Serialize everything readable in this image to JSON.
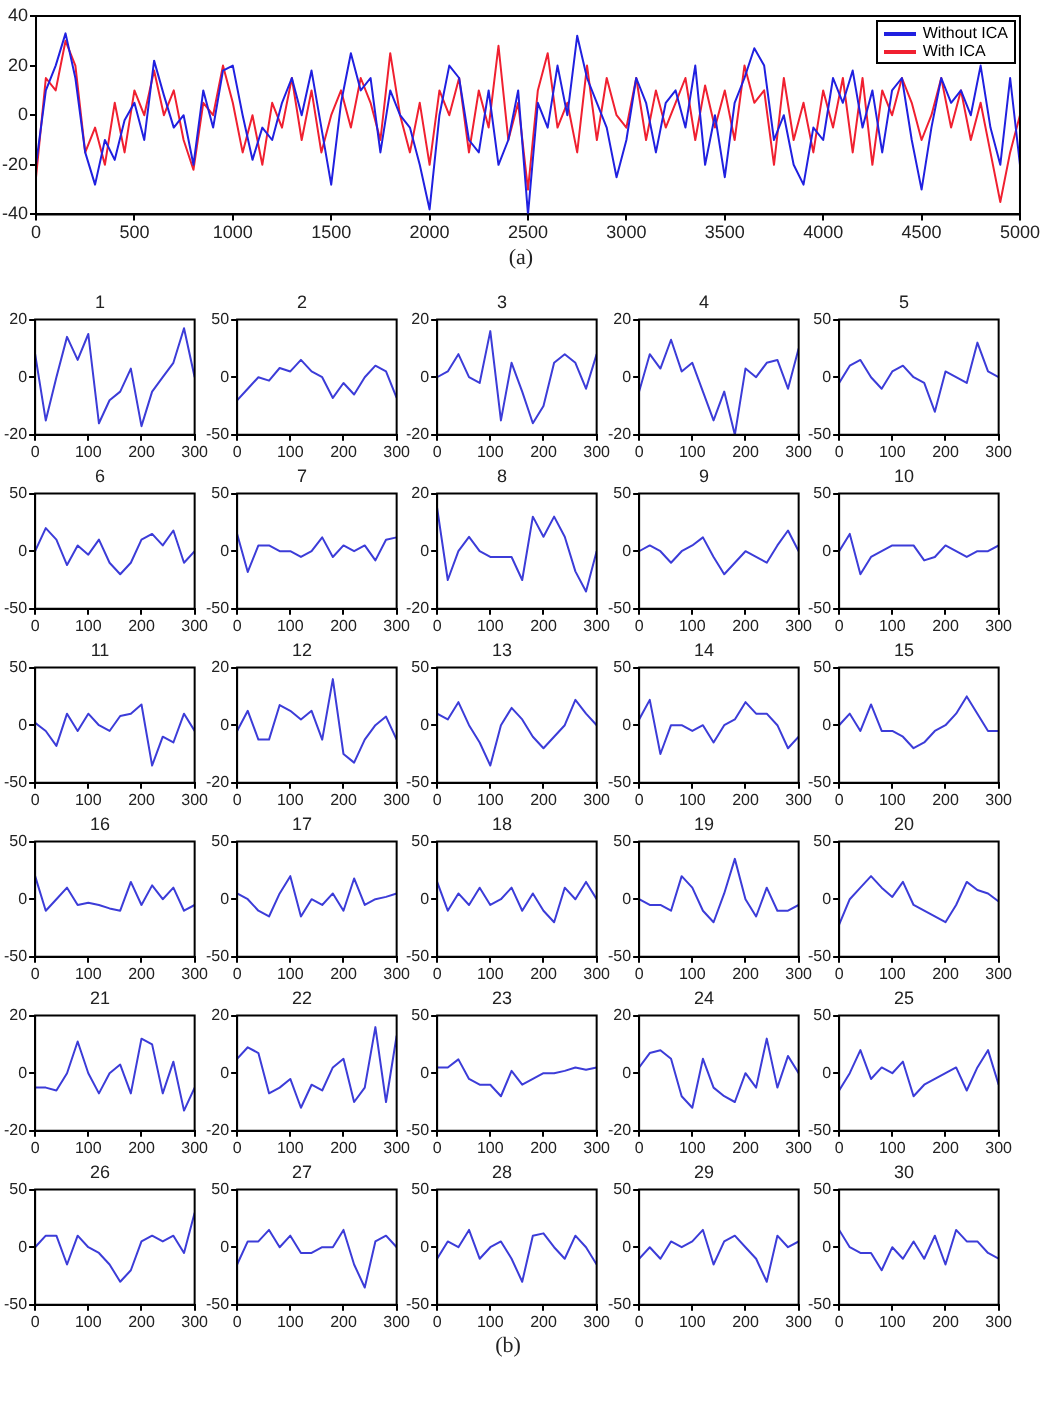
{
  "chart_data": [
    {
      "type": "line",
      "xlim": [
        0,
        5000
      ],
      "ylim": [
        -40,
        40
      ],
      "xticks": [
        0,
        500,
        1000,
        1500,
        2000,
        2500,
        3000,
        3500,
        4000,
        4500,
        5000
      ],
      "yticks": [
        -40,
        -20,
        0,
        20,
        40
      ],
      "grid": false,
      "legend": "top right",
      "marker": "none",
      "annotations": [
        "(a)"
      ],
      "x": [
        0,
        50,
        100,
        150,
        200,
        250,
        300,
        350,
        400,
        450,
        500,
        550,
        600,
        650,
        700,
        750,
        800,
        850,
        900,
        950,
        1000,
        1050,
        1100,
        1150,
        1200,
        1250,
        1300,
        1350,
        1400,
        1450,
        1500,
        1550,
        1600,
        1650,
        1700,
        1750,
        1800,
        1850,
        1900,
        1950,
        2000,
        2050,
        2100,
        2150,
        2200,
        2250,
        2300,
        2350,
        2400,
        2450,
        2500,
        2550,
        2600,
        2650,
        2700,
        2750,
        2800,
        2850,
        2900,
        2950,
        3000,
        3050,
        3100,
        3150,
        3200,
        3250,
        3300,
        3350,
        3400,
        3450,
        3500,
        3550,
        3600,
        3650,
        3700,
        3750,
        3800,
        3850,
        3900,
        3950,
        4000,
        4050,
        4100,
        4150,
        4200,
        4250,
        4300,
        4350,
        4400,
        4450,
        4500,
        4550,
        4600,
        4650,
        4700,
        4750,
        4800,
        4850,
        4900,
        4950,
        5000
      ],
      "series": [
        {
          "name": "Without ICA",
          "color": "#2020e0",
          "values": [
            -20,
            10,
            20,
            33,
            15,
            -15,
            -28,
            -10,
            -18,
            -2,
            5,
            -10,
            22,
            8,
            -5,
            0,
            -20,
            10,
            -5,
            18,
            20,
            0,
            -18,
            -5,
            -10,
            5,
            15,
            0,
            18,
            -5,
            -28,
            5,
            25,
            10,
            15,
            -15,
            10,
            0,
            -5,
            -20,
            -38,
            0,
            20,
            15,
            -10,
            -15,
            10,
            -20,
            -10,
            10,
            -40,
            5,
            -5,
            20,
            0,
            32,
            15,
            5,
            -5,
            -25,
            -10,
            15,
            5,
            -15,
            5,
            10,
            -5,
            20,
            -20,
            0,
            -25,
            5,
            15,
            27,
            20,
            -10,
            0,
            -20,
            -28,
            -5,
            -10,
            15,
            5,
            18,
            -5,
            10,
            -15,
            10,
            15,
            -10,
            -30,
            -5,
            15,
            5,
            10,
            0,
            20,
            -5,
            -20,
            15,
            -20
          ]
        },
        {
          "name": "With ICA",
          "color": "#f02030",
          "values": [
            -25,
            15,
            10,
            30,
            20,
            -15,
            -5,
            -20,
            5,
            -15,
            10,
            0,
            18,
            0,
            10,
            -10,
            -22,
            5,
            0,
            20,
            5,
            -15,
            0,
            -20,
            5,
            -5,
            15,
            -10,
            10,
            -15,
            0,
            10,
            -5,
            15,
            5,
            -10,
            25,
            0,
            -15,
            5,
            -20,
            10,
            0,
            15,
            -15,
            10,
            -5,
            28,
            -10,
            5,
            -30,
            10,
            25,
            -5,
            5,
            -15,
            20,
            -10,
            15,
            0,
            -5,
            15,
            -10,
            10,
            -5,
            5,
            15,
            -10,
            12,
            -5,
            10,
            -10,
            20,
            5,
            10,
            -20,
            15,
            -10,
            5,
            -15,
            10,
            -5,
            15,
            -15,
            15,
            -20,
            10,
            0,
            15,
            5,
            -10,
            0,
            15,
            -5,
            10,
            -10,
            5,
            -15,
            -35,
            -15,
            0
          ]
        }
      ]
    },
    {
      "type": "line",
      "title": "1",
      "xlim": [
        0,
        300
      ],
      "ylim": [
        -20,
        20
      ],
      "xticks": [
        0,
        100,
        200,
        300
      ],
      "yticks": [
        -20,
        0,
        20
      ],
      "grid": false,
      "marker": "none",
      "color": "#3c3cd8",
      "x": [
        0,
        20,
        40,
        60,
        80,
        100,
        120,
        140,
        160,
        180,
        200,
        220,
        240,
        260,
        280,
        300
      ],
      "values": [
        8,
        -15,
        0,
        14,
        6,
        15,
        -16,
        -8,
        -5,
        3,
        -17,
        -5,
        0,
        5,
        17,
        0
      ]
    },
    {
      "type": "line",
      "title": "2",
      "xlim": [
        0,
        300
      ],
      "ylim": [
        -50,
        50
      ],
      "xticks": [
        0,
        100,
        200,
        300
      ],
      "yticks": [
        -50,
        0,
        50
      ],
      "grid": false,
      "marker": "none",
      "color": "#3c3cd8",
      "x": [
        0,
        20,
        40,
        60,
        80,
        100,
        120,
        140,
        160,
        180,
        200,
        220,
        240,
        260,
        280,
        300
      ],
      "values": [
        -20,
        -10,
        0,
        -3,
        8,
        5,
        15,
        5,
        0,
        -18,
        -5,
        -15,
        0,
        10,
        5,
        -18
      ]
    },
    {
      "type": "line",
      "title": "3",
      "xlim": [
        0,
        300
      ],
      "ylim": [
        -20,
        20
      ],
      "xticks": [
        0,
        100,
        200,
        300
      ],
      "yticks": [
        -20,
        0,
        20
      ],
      "grid": false,
      "marker": "none",
      "color": "#3c3cd8",
      "x": [
        0,
        20,
        40,
        60,
        80,
        100,
        120,
        140,
        160,
        180,
        200,
        220,
        240,
        260,
        280,
        300
      ],
      "values": [
        0,
        2,
        8,
        0,
        -2,
        16,
        -15,
        5,
        -5,
        -16,
        -10,
        5,
        8,
        5,
        -4,
        8
      ]
    },
    {
      "type": "line",
      "title": "4",
      "xlim": [
        0,
        300
      ],
      "ylim": [
        -20,
        20
      ],
      "xticks": [
        0,
        100,
        200,
        300
      ],
      "yticks": [
        -20,
        0,
        20
      ],
      "grid": false,
      "marker": "none",
      "color": "#3c3cd8",
      "x": [
        0,
        20,
        40,
        60,
        80,
        100,
        120,
        140,
        160,
        180,
        200,
        220,
        240,
        260,
        280,
        300
      ],
      "values": [
        -5,
        8,
        3,
        13,
        2,
        5,
        -5,
        -15,
        -5,
        -20,
        3,
        0,
        5,
        6,
        -4,
        10
      ]
    },
    {
      "type": "line",
      "title": "5",
      "xlim": [
        0,
        300
      ],
      "ylim": [
        -50,
        50
      ],
      "xticks": [
        0,
        100,
        200,
        300
      ],
      "yticks": [
        -50,
        0,
        50
      ],
      "grid": false,
      "marker": "none",
      "color": "#3c3cd8",
      "x": [
        0,
        20,
        40,
        60,
        80,
        100,
        120,
        140,
        160,
        180,
        200,
        220,
        240,
        260,
        280,
        300
      ],
      "values": [
        -5,
        10,
        15,
        0,
        -10,
        5,
        10,
        0,
        -5,
        -30,
        5,
        0,
        -5,
        30,
        5,
        0
      ]
    },
    {
      "type": "line",
      "title": "6",
      "xlim": [
        0,
        300
      ],
      "ylim": [
        -50,
        50
      ],
      "xticks": [
        0,
        100,
        200,
        300
      ],
      "yticks": [
        -50,
        0,
        50
      ],
      "grid": false,
      "marker": "none",
      "color": "#3c3cd8",
      "x": [
        0,
        20,
        40,
        60,
        80,
        100,
        120,
        140,
        160,
        180,
        200,
        220,
        240,
        260,
        280,
        300
      ],
      "values": [
        0,
        20,
        10,
        -12,
        5,
        -3,
        10,
        -10,
        -20,
        -10,
        10,
        15,
        5,
        18,
        -10,
        0
      ]
    },
    {
      "type": "line",
      "title": "7",
      "xlim": [
        0,
        300
      ],
      "ylim": [
        -50,
        50
      ],
      "xticks": [
        0,
        100,
        200,
        300
      ],
      "yticks": [
        -50,
        0,
        50
      ],
      "grid": false,
      "marker": "none",
      "color": "#3c3cd8",
      "x": [
        0,
        20,
        40,
        60,
        80,
        100,
        120,
        140,
        160,
        180,
        200,
        220,
        240,
        260,
        280,
        300
      ],
      "values": [
        15,
        -18,
        5,
        5,
        0,
        0,
        -5,
        0,
        12,
        -5,
        5,
        0,
        5,
        -8,
        10,
        12
      ]
    },
    {
      "type": "line",
      "title": "8",
      "xlim": [
        0,
        300
      ],
      "ylim": [
        -20,
        20
      ],
      "xticks": [
        0,
        100,
        200,
        300
      ],
      "yticks": [
        -20,
        0,
        20
      ],
      "grid": false,
      "marker": "none",
      "color": "#3c3cd8",
      "x": [
        0,
        20,
        40,
        60,
        80,
        100,
        120,
        140,
        160,
        180,
        200,
        220,
        240,
        260,
        280,
        300
      ],
      "values": [
        15,
        -10,
        0,
        5,
        0,
        -2,
        -2,
        -2,
        -10,
        12,
        5,
        12,
        5,
        -7,
        -14,
        0
      ]
    },
    {
      "type": "line",
      "title": "9",
      "xlim": [
        0,
        300
      ],
      "ylim": [
        -50,
        50
      ],
      "xticks": [
        0,
        100,
        200,
        300
      ],
      "yticks": [
        -50,
        0,
        50
      ],
      "grid": false,
      "marker": "none",
      "color": "#3c3cd8",
      "x": [
        0,
        20,
        40,
        60,
        80,
        100,
        120,
        140,
        160,
        180,
        200,
        220,
        240,
        260,
        280,
        300
      ],
      "values": [
        0,
        5,
        0,
        -10,
        0,
        5,
        12,
        -5,
        -20,
        -10,
        0,
        -5,
        -10,
        5,
        18,
        0
      ]
    },
    {
      "type": "line",
      "title": "10",
      "xlim": [
        0,
        300
      ],
      "ylim": [
        -50,
        50
      ],
      "xticks": [
        0,
        100,
        200,
        300
      ],
      "yticks": [
        -50,
        0,
        50
      ],
      "grid": false,
      "marker": "none",
      "color": "#3c3cd8",
      "x": [
        0,
        20,
        40,
        60,
        80,
        100,
        120,
        140,
        160,
        180,
        200,
        220,
        240,
        260,
        280,
        300
      ],
      "values": [
        0,
        15,
        -20,
        -5,
        0,
        5,
        5,
        5,
        -8,
        -5,
        5,
        0,
        -5,
        0,
        0,
        5
      ]
    },
    {
      "type": "line",
      "title": "11",
      "xlim": [
        0,
        300
      ],
      "ylim": [
        -50,
        50
      ],
      "xticks": [
        0,
        100,
        200,
        300
      ],
      "yticks": [
        -50,
        0,
        50
      ],
      "grid": false,
      "marker": "none",
      "color": "#3c3cd8",
      "x": [
        0,
        20,
        40,
        60,
        80,
        100,
        120,
        140,
        160,
        180,
        200,
        220,
        240,
        260,
        280,
        300
      ],
      "values": [
        2,
        -5,
        -18,
        10,
        -5,
        10,
        0,
        -5,
        8,
        10,
        18,
        -35,
        -10,
        -15,
        10,
        -5
      ]
    },
    {
      "type": "line",
      "title": "12",
      "xlim": [
        0,
        300
      ],
      "ylim": [
        -20,
        20
      ],
      "xticks": [
        0,
        100,
        200,
        300
      ],
      "yticks": [
        -20,
        0,
        20
      ],
      "grid": false,
      "marker": "none",
      "color": "#3c3cd8",
      "x": [
        0,
        20,
        40,
        60,
        80,
        100,
        120,
        140,
        160,
        180,
        200,
        220,
        240,
        260,
        280,
        300
      ],
      "values": [
        -2,
        5,
        -5,
        -5,
        7,
        5,
        2,
        5,
        -5,
        16,
        -10,
        -13,
        -5,
        0,
        3,
        -5
      ]
    },
    {
      "type": "line",
      "title": "13",
      "xlim": [
        0,
        300
      ],
      "ylim": [
        -50,
        50
      ],
      "xticks": [
        0,
        100,
        200,
        300
      ],
      "yticks": [
        -50,
        0,
        50
      ],
      "grid": false,
      "marker": "none",
      "color": "#3c3cd8",
      "x": [
        0,
        20,
        40,
        60,
        80,
        100,
        120,
        140,
        160,
        180,
        200,
        220,
        240,
        260,
        280,
        300
      ],
      "values": [
        10,
        5,
        20,
        0,
        -15,
        -35,
        0,
        15,
        5,
        -10,
        -20,
        -10,
        0,
        22,
        10,
        0
      ]
    },
    {
      "type": "line",
      "title": "14",
      "xlim": [
        0,
        300
      ],
      "ylim": [
        -50,
        50
      ],
      "xticks": [
        0,
        100,
        200,
        300
      ],
      "yticks": [
        -50,
        0,
        50
      ],
      "grid": false,
      "marker": "none",
      "color": "#3c3cd8",
      "x": [
        0,
        20,
        40,
        60,
        80,
        100,
        120,
        140,
        160,
        180,
        200,
        220,
        240,
        260,
        280,
        300
      ],
      "values": [
        5,
        22,
        -25,
        0,
        0,
        -5,
        0,
        -15,
        0,
        5,
        20,
        10,
        10,
        0,
        -20,
        -10
      ]
    },
    {
      "type": "line",
      "title": "15",
      "xlim": [
        0,
        300
      ],
      "ylim": [
        -50,
        50
      ],
      "xticks": [
        0,
        100,
        200,
        300
      ],
      "yticks": [
        -50,
        0,
        50
      ],
      "grid": false,
      "marker": "none",
      "color": "#3c3cd8",
      "x": [
        0,
        20,
        40,
        60,
        80,
        100,
        120,
        140,
        160,
        180,
        200,
        220,
        240,
        260,
        280,
        300
      ],
      "values": [
        0,
        10,
        -5,
        18,
        -5,
        -5,
        -10,
        -20,
        -15,
        -5,
        0,
        10,
        25,
        10,
        -5,
        -5
      ]
    },
    {
      "type": "line",
      "title": "16",
      "xlim": [
        0,
        300
      ],
      "ylim": [
        -50,
        50
      ],
      "xticks": [
        0,
        100,
        200,
        300
      ],
      "yticks": [
        -50,
        0,
        50
      ],
      "grid": false,
      "marker": "none",
      "color": "#3c3cd8",
      "x": [
        0,
        20,
        40,
        60,
        80,
        100,
        120,
        140,
        160,
        180,
        200,
        220,
        240,
        260,
        280,
        300
      ],
      "values": [
        20,
        -10,
        0,
        10,
        -5,
        -3,
        -5,
        -8,
        -10,
        15,
        -5,
        12,
        0,
        10,
        -10,
        -5
      ]
    },
    {
      "type": "line",
      "title": "17",
      "xlim": [
        0,
        300
      ],
      "ylim": [
        -50,
        50
      ],
      "xticks": [
        0,
        100,
        200,
        300
      ],
      "yticks": [
        -50,
        0,
        50
      ],
      "grid": false,
      "marker": "none",
      "color": "#3c3cd8",
      "x": [
        0,
        20,
        40,
        60,
        80,
        100,
        120,
        140,
        160,
        180,
        200,
        220,
        240,
        260,
        280,
        300
      ],
      "values": [
        5,
        0,
        -10,
        -15,
        5,
        20,
        -15,
        0,
        -5,
        5,
        -10,
        18,
        -5,
        0,
        2,
        5
      ]
    },
    {
      "type": "line",
      "title": "18",
      "xlim": [
        0,
        300
      ],
      "ylim": [
        -50,
        50
      ],
      "xticks": [
        0,
        100,
        200,
        300
      ],
      "yticks": [
        -50,
        0,
        50
      ],
      "grid": false,
      "marker": "none",
      "color": "#3c3cd8",
      "x": [
        0,
        20,
        40,
        60,
        80,
        100,
        120,
        140,
        160,
        180,
        200,
        220,
        240,
        260,
        280,
        300
      ],
      "values": [
        15,
        -10,
        5,
        -5,
        10,
        -5,
        0,
        10,
        -10,
        5,
        -10,
        -20,
        10,
        0,
        15,
        0
      ]
    },
    {
      "type": "line",
      "title": "19",
      "xlim": [
        0,
        300
      ],
      "ylim": [
        -50,
        50
      ],
      "xticks": [
        0,
        100,
        200,
        300
      ],
      "yticks": [
        -50,
        0,
        50
      ],
      "grid": false,
      "marker": "none",
      "color": "#3c3cd8",
      "x": [
        0,
        20,
        40,
        60,
        80,
        100,
        120,
        140,
        160,
        180,
        200,
        220,
        240,
        260,
        280,
        300
      ],
      "values": [
        0,
        -5,
        -5,
        -10,
        20,
        10,
        -10,
        -20,
        5,
        35,
        0,
        -15,
        10,
        -10,
        -10,
        -5
      ]
    },
    {
      "type": "line",
      "title": "20",
      "xlim": [
        0,
        300
      ],
      "ylim": [
        -50,
        50
      ],
      "xticks": [
        0,
        100,
        200,
        300
      ],
      "yticks": [
        -50,
        0,
        50
      ],
      "grid": false,
      "marker": "none",
      "color": "#3c3cd8",
      "x": [
        0,
        20,
        40,
        60,
        80,
        100,
        120,
        140,
        160,
        180,
        200,
        220,
        240,
        260,
        280,
        300
      ],
      "values": [
        -22,
        0,
        10,
        20,
        10,
        2,
        15,
        -5,
        -10,
        -15,
        -20,
        -5,
        15,
        8,
        5,
        -2
      ]
    },
    {
      "type": "line",
      "title": "21",
      "xlim": [
        0,
        300
      ],
      "ylim": [
        -20,
        20
      ],
      "xticks": [
        0,
        100,
        200,
        300
      ],
      "yticks": [
        -20,
        0,
        20
      ],
      "grid": false,
      "marker": "none",
      "color": "#3c3cd8",
      "x": [
        0,
        20,
        40,
        60,
        80,
        100,
        120,
        140,
        160,
        180,
        200,
        220,
        240,
        260,
        280,
        300
      ],
      "values": [
        -5,
        -5,
        -6,
        0,
        11,
        0,
        -7,
        0,
        3,
        -7,
        12,
        10,
        -7,
        4,
        -13,
        -5
      ]
    },
    {
      "type": "line",
      "title": "22",
      "xlim": [
        0,
        300
      ],
      "ylim": [
        -20,
        20
      ],
      "xticks": [
        0,
        100,
        200,
        300
      ],
      "yticks": [
        -20,
        0,
        20
      ],
      "grid": false,
      "marker": "none",
      "color": "#3c3cd8",
      "x": [
        0,
        20,
        40,
        60,
        80,
        100,
        120,
        140,
        160,
        180,
        200,
        220,
        240,
        260,
        280,
        300
      ],
      "values": [
        5,
        9,
        7,
        -7,
        -5,
        -2,
        -12,
        -4,
        -6,
        2,
        5,
        -10,
        -5,
        16,
        -10,
        13
      ]
    },
    {
      "type": "line",
      "title": "23",
      "xlim": [
        0,
        300
      ],
      "ylim": [
        -50,
        50
      ],
      "xticks": [
        0,
        100,
        200,
        300
      ],
      "yticks": [
        -50,
        0,
        50
      ],
      "grid": false,
      "marker": "none",
      "color": "#3c3cd8",
      "x": [
        0,
        20,
        40,
        60,
        80,
        100,
        120,
        140,
        160,
        180,
        200,
        220,
        240,
        260,
        280,
        300
      ],
      "values": [
        5,
        5,
        12,
        -5,
        -10,
        -10,
        -20,
        2,
        -10,
        -5,
        0,
        0,
        2,
        5,
        3,
        5
      ]
    },
    {
      "type": "line",
      "title": "24",
      "xlim": [
        0,
        300
      ],
      "ylim": [
        -20,
        20
      ],
      "xticks": [
        0,
        100,
        200,
        300
      ],
      "yticks": [
        -20,
        0,
        20
      ],
      "grid": false,
      "marker": "none",
      "color": "#3c3cd8",
      "x": [
        0,
        20,
        40,
        60,
        80,
        100,
        120,
        140,
        160,
        180,
        200,
        220,
        240,
        260,
        280,
        300
      ],
      "values": [
        2,
        7,
        8,
        5,
        -8,
        -12,
        5,
        -5,
        -8,
        -10,
        0,
        -5,
        12,
        -5,
        6,
        0
      ]
    },
    {
      "type": "line",
      "title": "25",
      "xlim": [
        0,
        300
      ],
      "ylim": [
        -50,
        50
      ],
      "xticks": [
        0,
        100,
        200,
        300
      ],
      "yticks": [
        -50,
        0,
        50
      ],
      "grid": false,
      "marker": "none",
      "color": "#3c3cd8",
      "x": [
        0,
        20,
        40,
        60,
        80,
        100,
        120,
        140,
        160,
        180,
        200,
        220,
        240,
        260,
        280,
        300
      ],
      "values": [
        -15,
        0,
        20,
        -5,
        5,
        0,
        10,
        -20,
        -10,
        -5,
        0,
        5,
        -15,
        5,
        20,
        -10
      ]
    },
    {
      "type": "line",
      "title": "26",
      "xlim": [
        0,
        300
      ],
      "ylim": [
        -50,
        50
      ],
      "xticks": [
        0,
        100,
        200,
        300
      ],
      "yticks": [
        -50,
        0,
        50
      ],
      "grid": false,
      "marker": "none",
      "color": "#3c3cd8",
      "x": [
        0,
        20,
        40,
        60,
        80,
        100,
        120,
        140,
        160,
        180,
        200,
        220,
        240,
        260,
        280,
        300
      ],
      "values": [
        0,
        10,
        10,
        -15,
        10,
        0,
        -5,
        -15,
        -30,
        -20,
        5,
        10,
        5,
        10,
        -5,
        30
      ]
    },
    {
      "type": "line",
      "title": "27",
      "xlim": [
        0,
        300
      ],
      "ylim": [
        -50,
        50
      ],
      "xticks": [
        0,
        100,
        200,
        300
      ],
      "yticks": [
        -50,
        0,
        50
      ],
      "grid": false,
      "marker": "none",
      "color": "#3c3cd8",
      "x": [
        0,
        20,
        40,
        60,
        80,
        100,
        120,
        140,
        160,
        180,
        200,
        220,
        240,
        260,
        280,
        300
      ],
      "values": [
        -15,
        5,
        5,
        15,
        0,
        10,
        -5,
        -5,
        0,
        0,
        15,
        -15,
        -35,
        5,
        10,
        0
      ]
    },
    {
      "type": "line",
      "title": "28",
      "xlim": [
        0,
        300
      ],
      "ylim": [
        -50,
        50
      ],
      "xticks": [
        0,
        100,
        200,
        300
      ],
      "yticks": [
        -50,
        0,
        50
      ],
      "grid": false,
      "marker": "none",
      "color": "#3c3cd8",
      "annotations": [
        "(b)"
      ],
      "x": [
        0,
        20,
        40,
        60,
        80,
        100,
        120,
        140,
        160,
        180,
        200,
        220,
        240,
        260,
        280,
        300
      ],
      "values": [
        -10,
        5,
        0,
        15,
        -10,
        0,
        5,
        -10,
        -30,
        10,
        12,
        0,
        -10,
        10,
        0,
        -15
      ]
    },
    {
      "type": "line",
      "title": "29",
      "xlim": [
        0,
        300
      ],
      "ylim": [
        -50,
        50
      ],
      "xticks": [
        0,
        100,
        200,
        300
      ],
      "yticks": [
        -50,
        0,
        50
      ],
      "grid": false,
      "marker": "none",
      "color": "#3c3cd8",
      "x": [
        0,
        20,
        40,
        60,
        80,
        100,
        120,
        140,
        160,
        180,
        200,
        220,
        240,
        260,
        280,
        300
      ],
      "values": [
        -10,
        0,
        -10,
        5,
        0,
        5,
        15,
        -15,
        5,
        10,
        0,
        -10,
        -30,
        10,
        0,
        5
      ]
    },
    {
      "type": "line",
      "title": "30",
      "xlim": [
        0,
        300
      ],
      "ylim": [
        -50,
        50
      ],
      "xticks": [
        0,
        100,
        200,
        300
      ],
      "yticks": [
        -50,
        0,
        50
      ],
      "grid": false,
      "marker": "none",
      "color": "#3c3cd8",
      "x": [
        0,
        20,
        40,
        60,
        80,
        100,
        120,
        140,
        160,
        180,
        200,
        220,
        240,
        260,
        280,
        300
      ],
      "values": [
        15,
        0,
        -5,
        -5,
        -20,
        0,
        -10,
        5,
        -10,
        10,
        -15,
        15,
        5,
        5,
        -5,
        -10
      ]
    }
  ]
}
